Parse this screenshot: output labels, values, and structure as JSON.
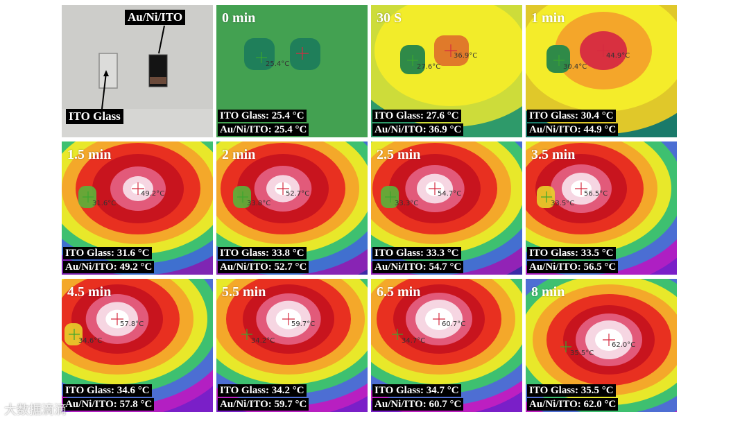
{
  "photo": {
    "label_electrode": "Au/Ni/ITO",
    "label_glass": "ITO Glass"
  },
  "panels": [
    {
      "time": "0 min",
      "ito": "ITO Glass: 25.4 °C",
      "au": "Au/Ni/ITO: 25.4 °C",
      "r1": "25.4°C",
      "r2": ""
    },
    {
      "time": "30 S",
      "ito": "ITO Glass: 27.6 °C",
      "au": "Au/Ni/ITO: 36.9 °C",
      "r1": "27.6°C",
      "r2": "36.9°C"
    },
    {
      "time": "1 min",
      "ito": "ITO Glass: 30.4 °C",
      "au": "Au/Ni/ITO: 44.9 °C",
      "r1": "30.4°C",
      "r2": "44.9°C"
    },
    {
      "time": "1.5 min",
      "ito": "ITO Glass: 31.6 °C",
      "au": "Au/Ni/ITO: 49.2 °C",
      "r1": "31.6°C",
      "r2": "49.2°C"
    },
    {
      "time": "2 min",
      "ito": "ITO Glass: 33.8 °C",
      "au": "Au/Ni/ITO: 52.7 °C",
      "r1": "33.8°C",
      "r2": "52.7°C"
    },
    {
      "time": "2.5 min",
      "ito": "ITO Glass: 33.3 °C",
      "au": "Au/Ni/ITO: 54.7 °C",
      "r1": "33.3°C",
      "r2": "54.7°C"
    },
    {
      "time": "3.5 min",
      "ito": "ITO Glass: 33.5 °C",
      "au": "Au/Ni/ITO: 56.5 °C",
      "r1": "33.5°C",
      "r2": "56.5°C"
    },
    {
      "time": "4.5 min",
      "ito": "ITO Glass: 34.6 °C",
      "au": "Au/Ni/ITO: 57.8 °C",
      "r1": "34.6°C",
      "r2": "57.8°C"
    },
    {
      "time": "5.5 min",
      "ito": "ITO Glass: 34.2 °C",
      "au": "Au/Ni/ITO: 59.7 °C",
      "r1": "34.2°C",
      "r2": "59.7°C"
    },
    {
      "time": "6.5 min",
      "ito": "ITO Glass: 34.7 °C",
      "au": "Au/Ni/ITO: 60.7 °C",
      "r1": "34.7°C",
      "r2": "60.7°C"
    },
    {
      "time": "8 min",
      "ito": "ITO Glass: 35.5 °C",
      "au": "Au/Ni/ITO: 62.0 °C",
      "r1": "35.5°C",
      "r2": "62.0°C"
    }
  ],
  "watermark": "大数据滴滴"
}
